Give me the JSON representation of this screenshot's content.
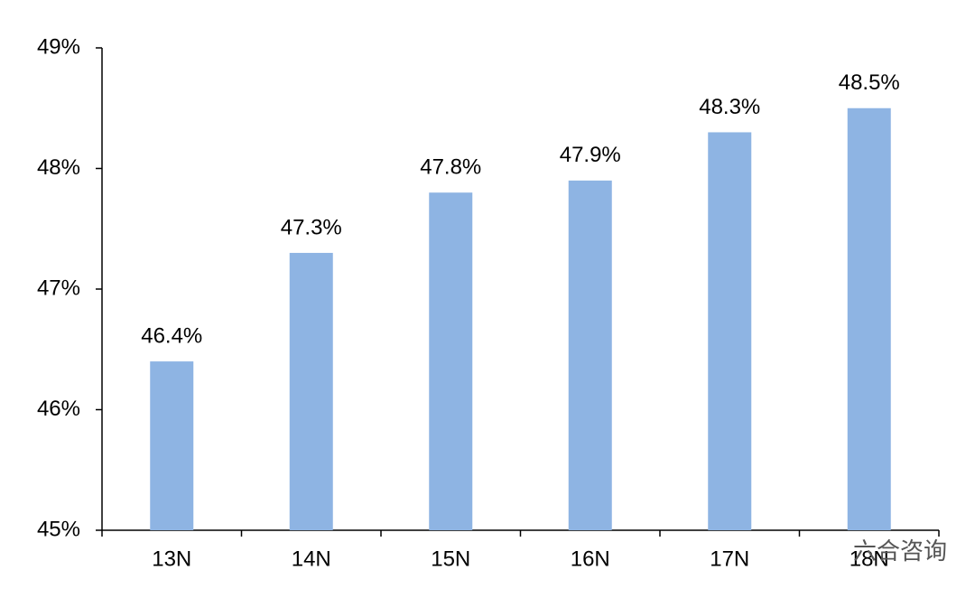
{
  "chart_data": {
    "type": "bar",
    "categories": [
      "13N",
      "14N",
      "15N",
      "16N",
      "17N",
      "18N"
    ],
    "values": [
      46.4,
      47.3,
      47.8,
      47.9,
      48.3,
      48.5
    ],
    "value_labels": [
      "46.4%",
      "47.3%",
      "47.8%",
      "47.9%",
      "48.3%",
      "48.5%"
    ],
    "color": "#8eb4e3",
    "ylim": [
      45,
      49
    ],
    "yticks": [
      {
        "value": 45,
        "label": "45%"
      },
      {
        "value": 46,
        "label": "46%"
      },
      {
        "value": 47,
        "label": "47%"
      },
      {
        "value": 48,
        "label": "48%"
      },
      {
        "value": 49,
        "label": "49%"
      }
    ],
    "grid": false,
    "watermark": "六合咨询"
  }
}
